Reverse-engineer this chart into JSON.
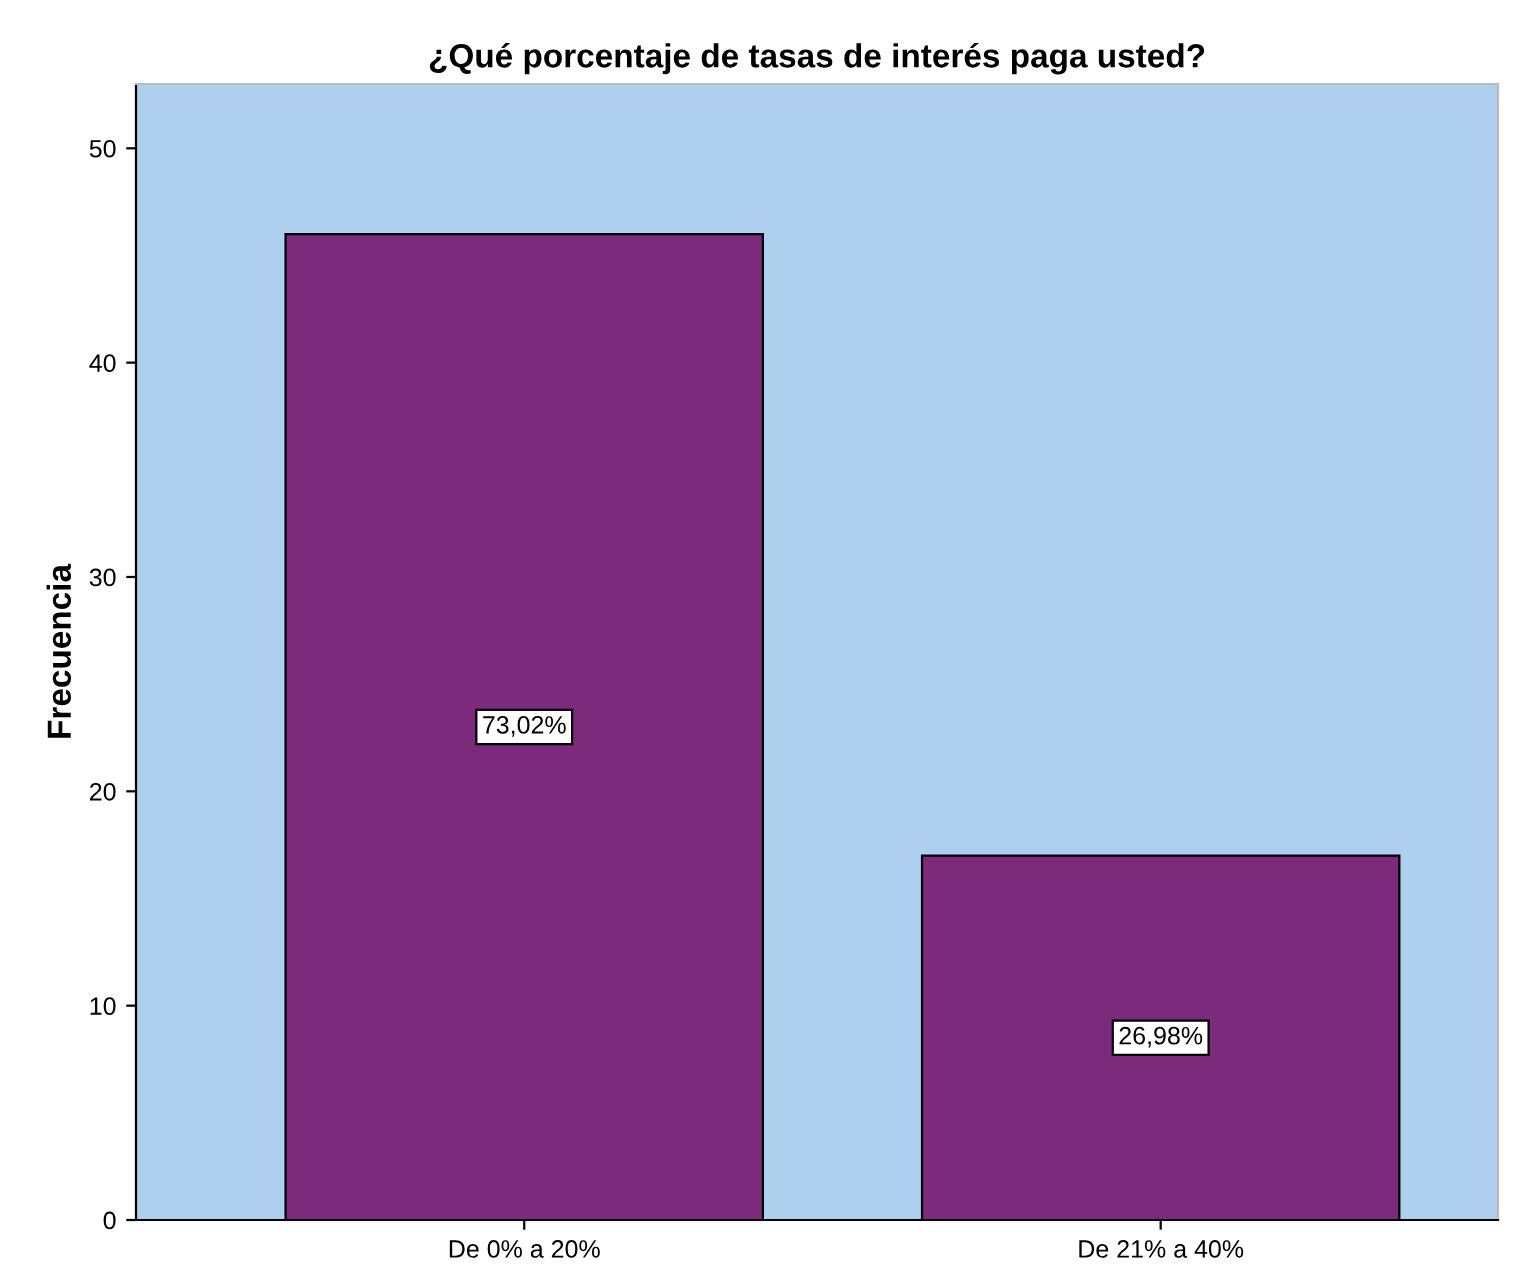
{
  "chart_data": {
    "type": "bar",
    "title": "¿Qué porcentaje de tasas de interés paga usted?",
    "ylabel": "Frecuencia",
    "categories": [
      "De 0% a 20%",
      "De 21% a 40%"
    ],
    "values": [
      46,
      17
    ],
    "color": "#7b2a7c",
    "annotations": [
      "73,02%",
      "26,98%"
    ],
    "ylim": [
      0,
      53
    ],
    "yticks": [
      0,
      10,
      20,
      30,
      40,
      50
    ],
    "grid": false,
    "legend": false
  }
}
